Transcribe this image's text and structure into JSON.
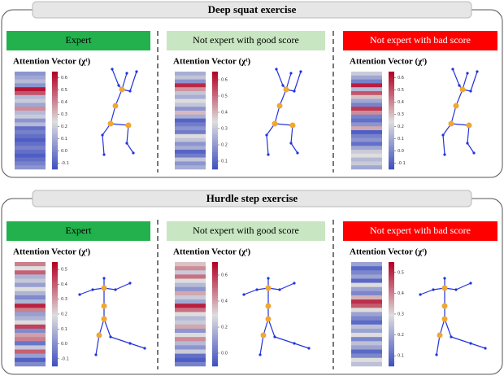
{
  "sections": [
    {
      "title": "Deep squat exercise",
      "panels": [
        {
          "label": "Expert",
          "heading": "Attention Vector (χᵗ)",
          "clim": [
            -0.15,
            0.65
          ],
          "cticks": [
            0.6,
            0.5,
            0.4,
            0.3,
            0.2,
            0.1,
            {
              "value": 0,
              "label": "0.0"
            },
            -0.1
          ],
          "values": [
            0.05,
            0.1,
            0.15,
            0.05,
            0.62,
            0.5,
            0.15,
            0.2,
            0.1,
            0.4,
            0.15,
            0.2,
            0.05,
            0.15,
            -0.05,
            0.0,
            -0.05,
            -0.1,
            -0.05,
            0.0,
            -0.05,
            -0.1,
            -0.05,
            0.0,
            0.05
          ]
        },
        {
          "label": "Not expert with  good score",
          "heading": "Attention Vector (χᵗ)",
          "clim": [
            0.05,
            0.65
          ],
          "cticks": [
            0.6,
            0.5,
            0.4,
            0.3,
            0.2,
            0.1
          ],
          "values": [
            0.25,
            0.3,
            0.2,
            0.6,
            0.45,
            0.3,
            0.25,
            0.35,
            0.3,
            0.2,
            0.4,
            0.25,
            0.1,
            0.15,
            0.2,
            0.15,
            0.35,
            0.3,
            0.2,
            0.25,
            0.1,
            0.15,
            0.3,
            0.2,
            0.25
          ]
        },
        {
          "label": "Not expert with bad score",
          "heading": "Attention Vector (χᵗ)",
          "clim": [
            -0.15,
            0.65
          ],
          "cticks": [
            0.6,
            0.5,
            0.4,
            0.3,
            0.2,
            0.1,
            {
              "value": 0,
              "label": "0.0"
            },
            -0.1
          ],
          "values": [
            0.2,
            0.1,
            0.0,
            0.6,
            0.15,
            0.5,
            0.3,
            0.1,
            0.0,
            0.55,
            0.4,
            0.0,
            -0.05,
            0.05,
            0.35,
            -0.1,
            0.0,
            0.05,
            -0.05,
            0.1,
            0.2,
            0.25,
            0.15,
            0.2,
            0.1
          ]
        }
      ]
    },
    {
      "title": "Hurdle step exercise",
      "panels": [
        {
          "label": "Expert",
          "heading": "Attention Vector (χᵗ)",
          "clim": [
            -0.15,
            0.55
          ],
          "cticks": [
            0.5,
            0.4,
            0.3,
            0.2,
            0.1,
            {
              "value": 0,
              "label": "0.0"
            },
            -0.1
          ],
          "values": [
            0.35,
            0.2,
            0.4,
            0.1,
            0.15,
            0.05,
            0.2,
            0.1,
            0.0,
            0.1,
            0.5,
            0.35,
            0.05,
            0.1,
            0.2,
            0.45,
            0.0,
            0.3,
            0.35,
            -0.05,
            0.15,
            0.4,
            0.05,
            -0.1,
            0.0
          ]
        },
        {
          "label": "Not expert with good score",
          "heading": "Attention Vector (χᵗ)",
          "clim": [
            -0.1,
            0.7
          ],
          "cticks": [
            0.6,
            0.4,
            0.2,
            {
              "value": 0,
              "label": "0.0"
            }
          ],
          "values": [
            0.35,
            0.45,
            0.25,
            0.5,
            0.3,
            0.2,
            0.1,
            0.4,
            0.25,
            0.15,
            0.65,
            0.5,
            0.3,
            0.2,
            0.25,
            0.4,
            0.1,
            0.3,
            0.45,
            0.2,
            0.1,
            0.25,
            0.0,
            -0.05,
            0.05
          ]
        },
        {
          "label": "Not expert with bad score",
          "heading": "Attention Vector (χᵗ)",
          "clim": [
            0.05,
            0.55
          ],
          "cticks": [
            0.5,
            0.4,
            0.3,
            0.2,
            0.1
          ],
          "values": [
            0.2,
            0.1,
            0.15,
            0.2,
            0.1,
            0.3,
            0.2,
            0.15,
            0.35,
            0.5,
            0.45,
            0.3,
            0.2,
            0.15,
            0.1,
            0.25,
            0.2,
            0.3,
            0.15,
            0.25,
            0.2,
            0.1,
            0.15,
            0.3,
            0.25
          ]
        }
      ]
    }
  ]
}
